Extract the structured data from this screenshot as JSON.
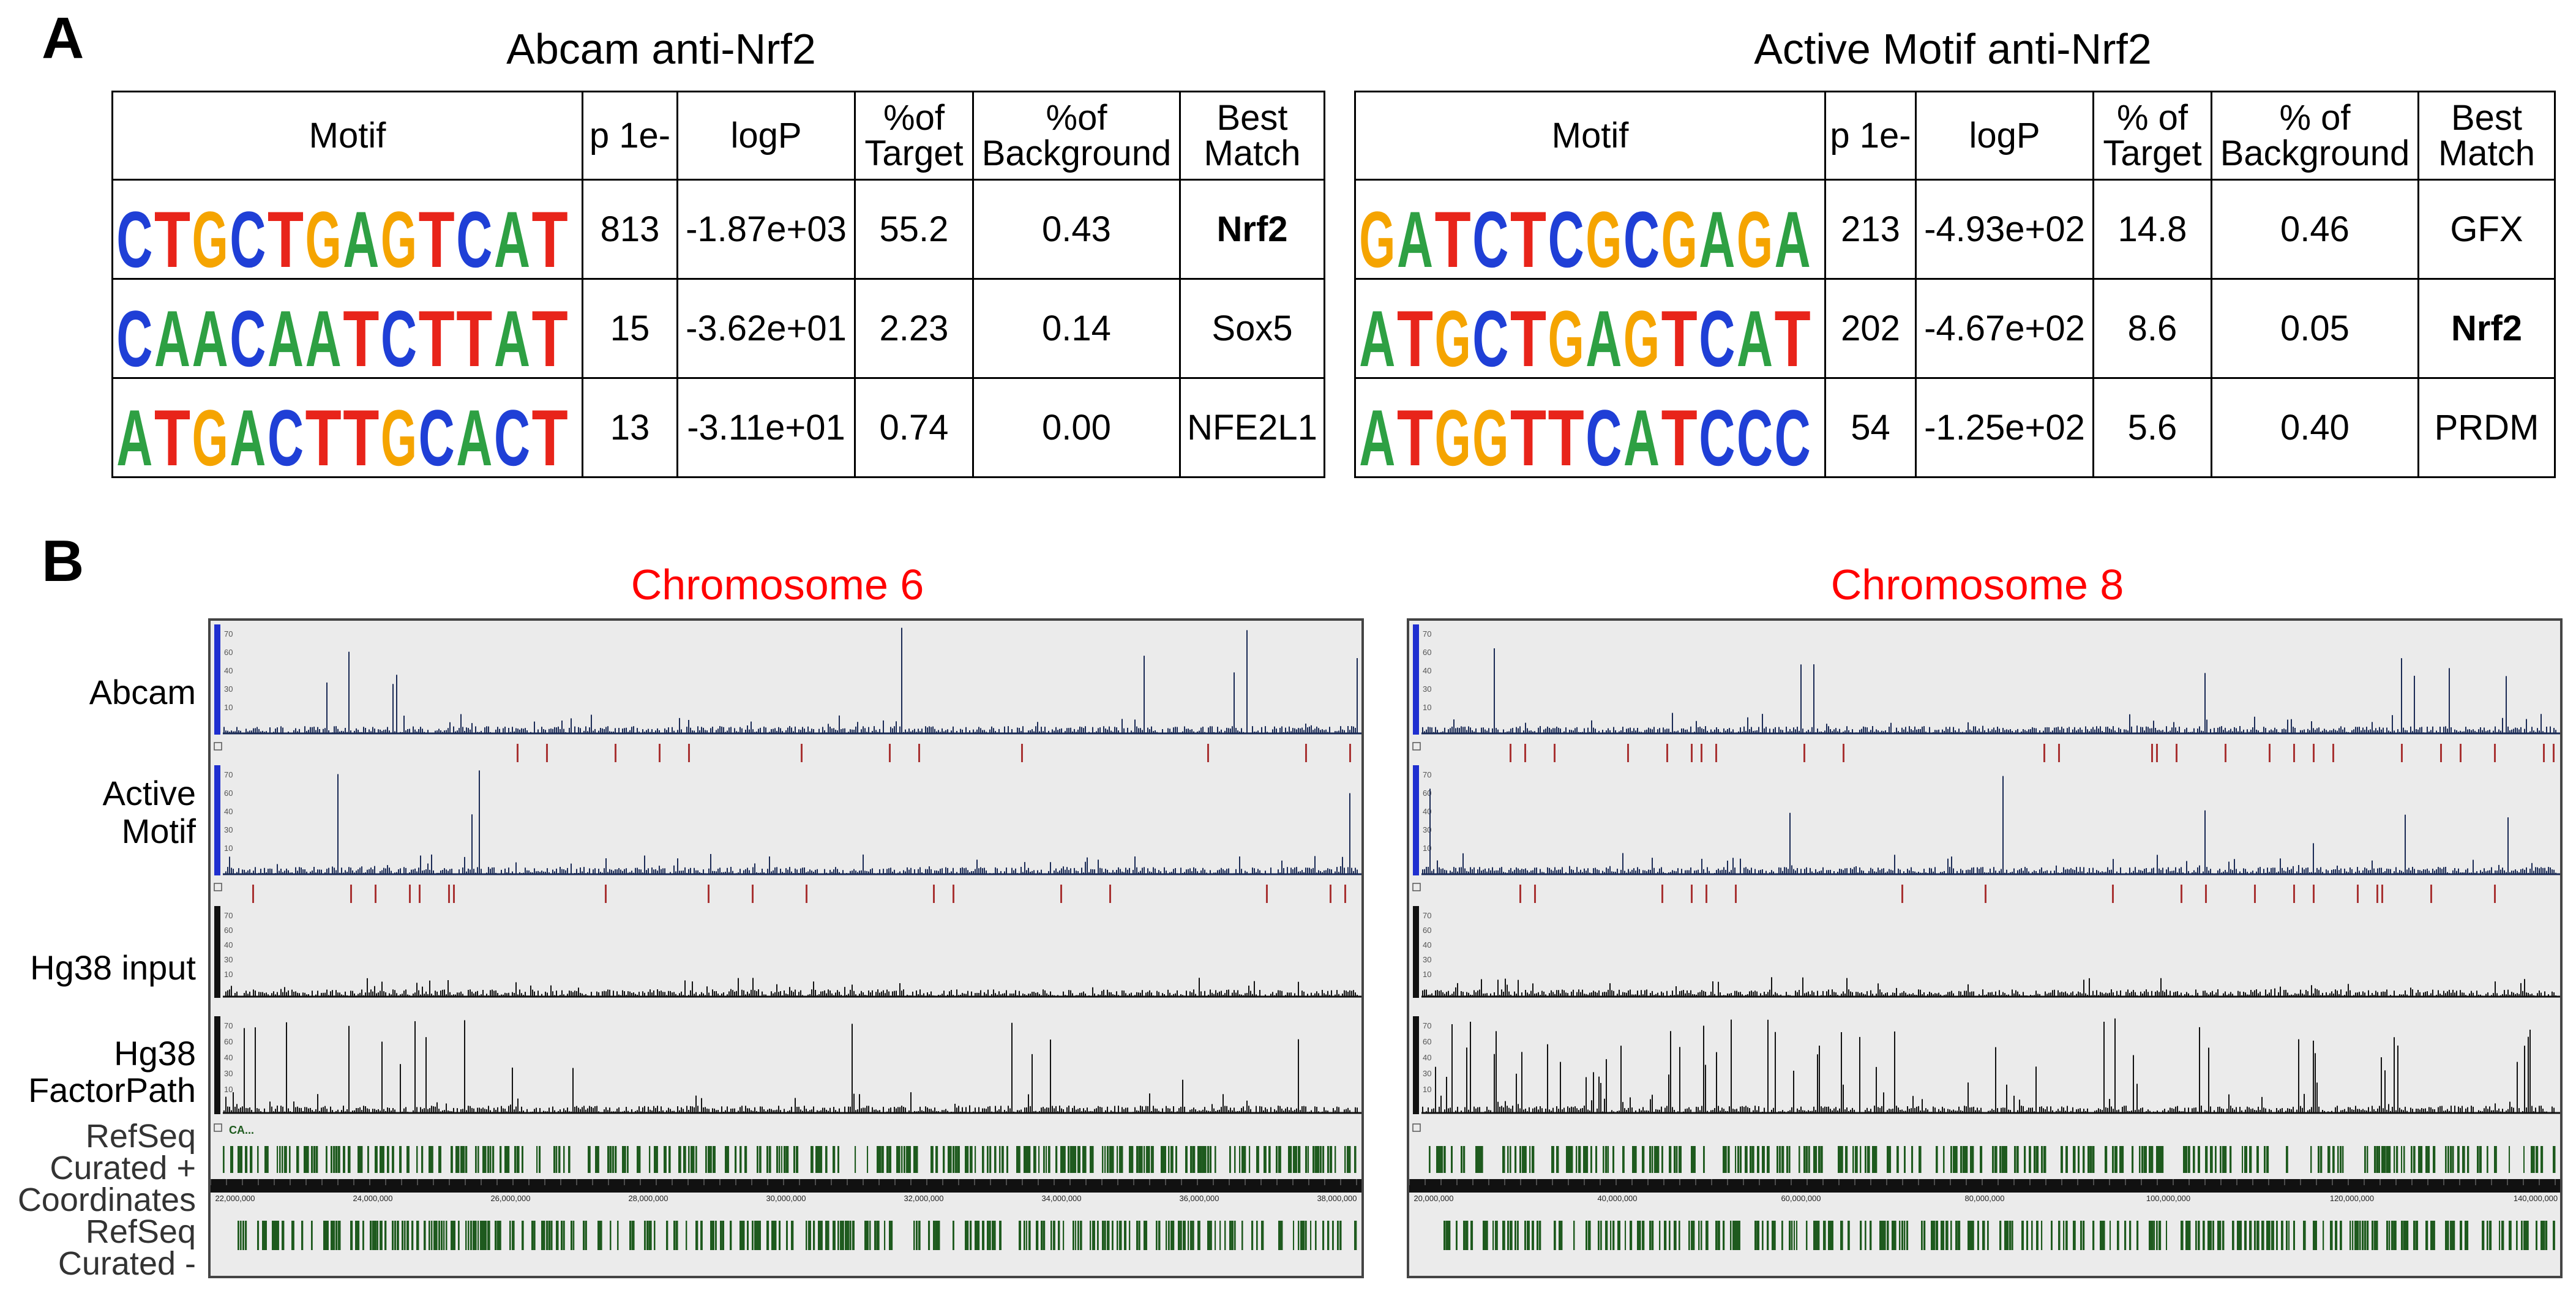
{
  "panels": {
    "a": "A",
    "b": "B"
  },
  "colors": {
    "A": "#2ea043",
    "C": "#1f3fd6",
    "G": "#f5a400",
    "T": "#e8241a",
    "chrom": "#ff0000",
    "peak": "#1a2a55",
    "bed": "#a83232",
    "gene": "#1e5a1e"
  },
  "table_left": {
    "title": "Abcam anti-Nrf2",
    "headers": {
      "motif": "Motif",
      "p": "p 1e-",
      "logp": "logP",
      "target": "%of Target",
      "background": "%of Background",
      "best": "Best Match"
    },
    "rows": [
      {
        "motif": "CTGCTGAGTCAT",
        "p": "813",
        "logp": "-1.87e+03",
        "target": "55.2",
        "background": "0.43",
        "best": "Nrf2",
        "bold": true
      },
      {
        "motif": "CAACAATCTTAT",
        "p": "15",
        "logp": "-3.62e+01",
        "target": "2.23",
        "background": "0.14",
        "best": "Sox5",
        "bold": false
      },
      {
        "motif": "ATGACTTGCACT",
        "p": "13",
        "logp": "-3.11e+01",
        "target": "0.74",
        "background": "0.00",
        "best": "NFE2L1",
        "bold": false
      }
    ]
  },
  "table_right": {
    "title": "Active Motif anti-Nrf2",
    "headers": {
      "motif": "Motif",
      "p": "p 1e-",
      "logp": "logP",
      "target": "% of Target",
      "background": "% of Background",
      "best": "Best Match"
    },
    "rows": [
      {
        "motif": "GATCTCGCGAGA",
        "p": "213",
        "logp": "-4.93e+02",
        "target": "14.8",
        "background": "0.46",
        "best": "GFX",
        "bold": false
      },
      {
        "motif": "ATGCTGAGTCAT",
        "p": "202",
        "logp": "-4.67e+02",
        "target": "8.6",
        "background": "0.05",
        "best": "Nrf2",
        "bold": true
      },
      {
        "motif": "ATGGTTCATCCC",
        "p": "54",
        "logp": "-1.25e+02",
        "target": "5.6",
        "background": "0.40",
        "best": "PRDM",
        "bold": false
      }
    ]
  },
  "browser": {
    "labels": {
      "abcam": "Abcam",
      "active1": "Active",
      "active2": "Motif",
      "input": "Hg38 input",
      "fp1": "Hg38",
      "fp2": "FactorPath",
      "rs1": "RefSeq",
      "rs2": "Curated +",
      "rs3": "Coordinates",
      "rs4": "RefSeq",
      "rs5": "Curated -"
    },
    "chrom6": {
      "title": "Chromosome 6",
      "gene_label": "CA...",
      "coords": [
        "22,000,000",
        "24,000,000",
        "26,000,000",
        "28,000,000",
        "30,000,000",
        "32,000,000",
        "34,000,000",
        "36,000,000",
        "38,000,000"
      ]
    },
    "chrom8": {
      "title": "Chromosome 8",
      "coords": [
        "20,000,000",
        "40,000,000",
        "60,000,000",
        "80,000,000",
        "100,000,000",
        "120,000,000",
        "140,000,000"
      ]
    },
    "scale_ticks": [
      "70",
      "60",
      "40",
      "30",
      "10"
    ]
  }
}
